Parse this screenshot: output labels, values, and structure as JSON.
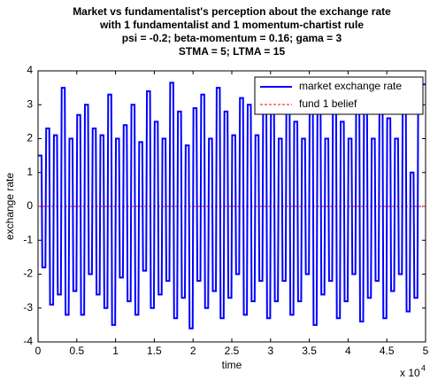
{
  "chart_data": {
    "type": "line",
    "title": [
      "Market vs fundamentalist's perception about the exchange rate",
      "with 1 fundamentalist and 1 momentum-chartist rule",
      "psi = -0.2; beta-momentum = 0.16; gama = 3",
      "STMA = 5; LTMA = 15"
    ],
    "x_label": "time",
    "y_label": "exchange rate",
    "x_scale_label": "x 10",
    "x_scale_exponent": "4",
    "xlim": [
      0,
      5
    ],
    "xticks": [
      0,
      0.5,
      1,
      1.5,
      2,
      2.5,
      3,
      3.5,
      4,
      4.5,
      5
    ],
    "ylim": [
      -4,
      4
    ],
    "yticks": [
      -4,
      -3,
      -2,
      -1,
      0,
      1,
      2,
      3,
      4
    ],
    "legend": "top-right",
    "series": [
      {
        "name": "market exchange rate",
        "color": "#0000ff",
        "dash": false,
        "x": [
          0.005,
          0.045,
          0.055,
          0.095,
          0.105,
          0.145,
          0.155,
          0.195,
          0.205,
          0.245,
          0.255,
          0.295,
          0.305,
          0.345,
          0.355,
          0.395,
          0.405,
          0.445,
          0.455,
          0.495,
          0.505,
          0.545,
          0.555,
          0.595,
          0.605,
          0.645,
          0.655,
          0.695,
          0.705,
          0.745,
          0.755,
          0.795,
          0.805,
          0.845,
          0.855,
          0.895,
          0.905,
          0.945,
          0.955,
          0.995,
          1.005,
          1.045,
          1.055,
          1.095,
          1.105,
          1.145,
          1.155,
          1.195,
          1.205,
          1.245,
          1.255,
          1.295,
          1.305,
          1.345,
          1.355,
          1.395,
          1.405,
          1.445,
          1.455,
          1.495,
          1.505,
          1.545,
          1.555,
          1.595,
          1.605,
          1.645,
          1.655,
          1.695,
          1.705,
          1.745,
          1.755,
          1.795,
          1.805,
          1.845,
          1.855,
          1.895,
          1.905,
          1.945,
          1.955,
          1.995,
          2.005,
          2.045,
          2.055,
          2.095,
          2.105,
          2.145,
          2.155,
          2.195,
          2.205,
          2.245,
          2.255,
          2.295,
          2.305,
          2.345,
          2.355,
          2.395,
          2.405,
          2.445,
          2.455,
          2.495,
          2.505,
          2.545,
          2.555,
          2.595,
          2.605,
          2.645,
          2.655,
          2.695,
          2.705,
          2.745,
          2.755,
          2.795,
          2.805,
          2.845,
          2.855,
          2.895,
          2.905,
          2.945,
          2.955,
          2.995,
          3.005,
          3.045,
          3.055,
          3.095,
          3.105,
          3.145,
          3.155,
          3.195,
          3.205,
          3.245,
          3.255,
          3.295,
          3.305,
          3.345,
          3.355,
          3.395,
          3.405,
          3.445,
          3.455,
          3.495,
          3.505,
          3.545,
          3.555,
          3.595,
          3.605,
          3.645,
          3.655,
          3.695,
          3.705,
          3.745,
          3.755,
          3.795,
          3.805,
          3.845,
          3.855,
          3.895,
          3.905,
          3.945,
          3.955,
          3.995,
          4.005,
          4.045,
          4.055,
          4.095,
          4.105,
          4.145,
          4.155,
          4.195,
          4.205,
          4.245,
          4.255,
          4.295,
          4.305,
          4.345,
          4.355,
          4.395,
          4.405,
          4.445,
          4.455,
          4.495,
          4.505,
          4.545,
          4.555,
          4.595,
          4.605,
          4.645,
          4.655,
          4.695,
          4.705,
          4.745,
          4.755,
          4.795,
          4.805,
          4.845,
          4.855,
          4.895,
          4.905,
          4.995
        ],
        "values": [
          1.5,
          1.5,
          -1.8,
          -1.8,
          2.3,
          2.3,
          -2.9,
          -2.9,
          2.1,
          2.1,
          -2.6,
          -2.6,
          3.5,
          3.5,
          -3.2,
          -3.2,
          2.0,
          2.0,
          -2.5,
          -2.5,
          2.7,
          2.7,
          -3.2,
          -3.2,
          3.0,
          3.0,
          -2.0,
          -2.0,
          2.3,
          2.3,
          -2.6,
          -2.6,
          2.1,
          2.1,
          -3.0,
          -3.0,
          3.3,
          3.3,
          -3.5,
          -3.5,
          2.0,
          2.0,
          -2.1,
          -2.1,
          2.4,
          2.4,
          -2.8,
          -2.8,
          3.0,
          3.0,
          -3.2,
          -3.2,
          1.9,
          1.9,
          -1.9,
          -1.9,
          3.4,
          3.4,
          -3.0,
          -3.0,
          2.5,
          2.5,
          -2.6,
          -2.6,
          2.0,
          2.0,
          -2.2,
          -2.2,
          3.65,
          3.65,
          -3.3,
          -3.3,
          2.8,
          2.8,
          -2.7,
          -2.7,
          1.8,
          1.8,
          -3.6,
          -3.6,
          2.9,
          2.9,
          -2.2,
          -2.2,
          3.3,
          3.3,
          -3.0,
          -3.0,
          2.0,
          2.0,
          -2.5,
          -2.5,
          3.5,
          3.5,
          -3.3,
          -3.3,
          2.8,
          2.8,
          -2.7,
          -2.7,
          2.1,
          2.1,
          -2.0,
          -2.0,
          3.2,
          3.2,
          -3.2,
          -3.2,
          3.0,
          3.0,
          -2.8,
          -2.8,
          2.1,
          2.1,
          -2.2,
          -2.2,
          3.3,
          3.3,
          -3.3,
          -3.3,
          2.8,
          2.8,
          -2.8,
          -2.8,
          2.0,
          2.0,
          -2.2,
          -2.2,
          3.5,
          3.5,
          -3.2,
          -3.2,
          2.5,
          2.5,
          -2.8,
          -2.8,
          2.0,
          2.0,
          -2.0,
          -2.0,
          3.2,
          3.2,
          -3.5,
          -3.5,
          3.0,
          3.0,
          -2.6,
          -2.6,
          2.0,
          2.0,
          -2.2,
          -2.2,
          3.3,
          3.3,
          -3.3,
          -3.3,
          2.5,
          2.5,
          -2.8,
          -2.8,
          2.0,
          2.0,
          -2.0,
          -2.0,
          3.4,
          3.4,
          -3.4,
          -3.4,
          2.8,
          2.8,
          -2.7,
          -2.7,
          2.0,
          2.0,
          -2.2,
          -2.2,
          3.2,
          3.2,
          -3.3,
          -3.3,
          2.6,
          2.6,
          -2.5,
          -2.5,
          2.0,
          2.0,
          -2.0,
          -2.0,
          3.3,
          3.3,
          -3.1,
          -3.1,
          1.0,
          1.0,
          -2.7,
          -2.7,
          3.6,
          3.6
        ]
      },
      {
        "name": "fund 1 belief",
        "color": "#ff0000",
        "dash": true,
        "x": [
          0,
          5
        ],
        "values": [
          0,
          0
        ]
      }
    ]
  }
}
